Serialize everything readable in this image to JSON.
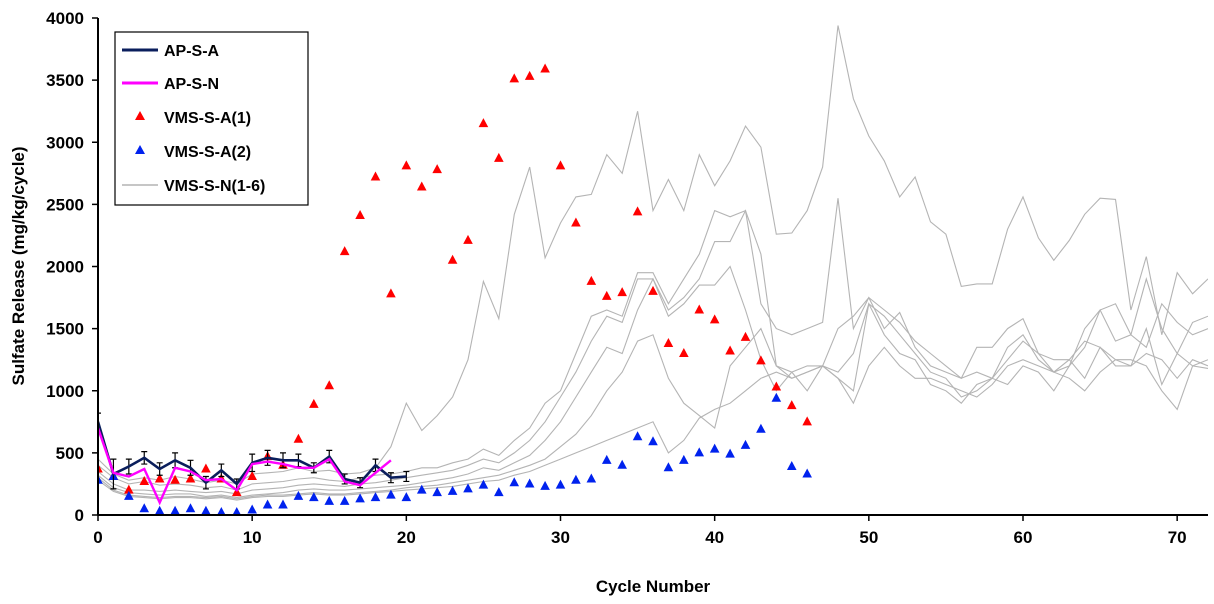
{
  "chart_data": {
    "type": "line",
    "xlabel": "Cycle Number",
    "ylabel": "Sulfate Release (mg/kg/cycle)",
    "xlim": [
      0,
      72
    ],
    "ylim": [
      0,
      4000
    ],
    "x_ticks": [
      0,
      10,
      20,
      30,
      40,
      50,
      60,
      70
    ],
    "y_ticks": [
      0,
      500,
      1000,
      1500,
      2000,
      2500,
      3000,
      3500,
      4000
    ],
    "grid": false,
    "legend_position": "top-left",
    "legend": [
      {
        "label": "AP-S-A",
        "series": "ap_s_a"
      },
      {
        "label": "AP-S-N",
        "series": "ap_s_n"
      },
      {
        "label": "VMS-S-A(1)",
        "series": "vms_s_a1"
      },
      {
        "label": "VMS-S-A(2)",
        "series": "vms_s_a2"
      },
      {
        "label": "VMS-S-N(1-6)",
        "series": "vms_s_n"
      }
    ],
    "colors": {
      "ap_s_a": "#0a1e5c",
      "ap_s_n": "#ff00ff",
      "vms_s_a1": "#ff0000",
      "vms_s_a2": "#0022ee",
      "vms_s_n": "#b4b4b4",
      "error_bar": "#000000"
    },
    "ap_s_a": {
      "x": [
        0,
        1,
        2,
        3,
        4,
        5,
        6,
        7,
        8,
        9,
        10,
        11,
        12,
        13,
        14,
        15,
        16,
        17,
        18,
        19,
        20
      ],
      "y": [
        750,
        330,
        390,
        460,
        370,
        440,
        380,
        260,
        360,
        250,
        420,
        460,
        440,
        440,
        380,
        470,
        290,
        260,
        400,
        300,
        310
      ],
      "error": [
        70,
        120,
        60,
        50,
        50,
        60,
        60,
        50,
        50,
        40,
        70,
        60,
        60,
        50,
        40,
        50,
        40,
        40,
        50,
        40,
        40
      ]
    },
    "ap_s_n": {
      "x": [
        0,
        1,
        2,
        3,
        4,
        5,
        6,
        7,
        8,
        9,
        10,
        11,
        12,
        13,
        14,
        15,
        16,
        17,
        18,
        19
      ],
      "y": [
        700,
        340,
        310,
        370,
        100,
        380,
        350,
        280,
        290,
        200,
        410,
        430,
        410,
        380,
        380,
        450,
        270,
        240,
        340,
        440
      ]
    },
    "vms_s_a1": {
      "x": [
        0,
        1,
        2,
        3,
        4,
        5,
        6,
        7,
        8,
        9,
        10,
        11,
        12,
        13,
        14,
        15,
        16,
        17,
        18,
        19,
        20,
        21,
        22,
        23,
        24,
        25,
        26,
        27,
        28,
        29,
        30,
        31,
        32,
        33,
        34,
        35,
        36,
        37,
        38,
        39,
        40,
        41,
        42,
        43,
        44,
        45,
        46
      ],
      "y": [
        370,
        310,
        200,
        270,
        290,
        280,
        290,
        370,
        290,
        180,
        310,
        470,
        400,
        610,
        890,
        1040,
        2120,
        2410,
        2720,
        1780,
        2810,
        2640,
        2780,
        2050,
        2210,
        3150,
        2870,
        3510,
        3530,
        3590,
        2810,
        2350,
        1880,
        1760,
        1790,
        2440,
        1800,
        1380,
        1300,
        1650,
        1570,
        1320,
        1430,
        1240,
        1030,
        880,
        750
      ]
    },
    "vms_s_a2": {
      "x": [
        0,
        1,
        2,
        3,
        4,
        5,
        6,
        7,
        8,
        9,
        10,
        11,
        12,
        13,
        14,
        15,
        16,
        17,
        18,
        19,
        20,
        21,
        22,
        23,
        24,
        25,
        26,
        27,
        28,
        29,
        30,
        31,
        32,
        33,
        34,
        35,
        36,
        37,
        38,
        39,
        40,
        41,
        42,
        43,
        44,
        45,
        46
      ],
      "y": [
        280,
        310,
        150,
        50,
        30,
        30,
        50,
        30,
        20,
        20,
        40,
        80,
        80,
        150,
        140,
        110,
        110,
        130,
        140,
        160,
        140,
        200,
        180,
        190,
        210,
        240,
        180,
        260,
        250,
        230,
        240,
        280,
        290,
        440,
        400,
        630,
        590,
        380,
        440,
        500,
        530,
        490,
        560,
        690,
        940,
        390,
        330
      ]
    },
    "vms_s_n": {
      "x": [
        0,
        1,
        2,
        3,
        4,
        5,
        6,
        7,
        8,
        9,
        10,
        11,
        12,
        13,
        14,
        15,
        16,
        17,
        18,
        19,
        20,
        21,
        22,
        23,
        24,
        25,
        26,
        27,
        28,
        29,
        30,
        31,
        32,
        33,
        34,
        35,
        36,
        37,
        38,
        39,
        40,
        41,
        42,
        43,
        44,
        45,
        46,
        47,
        48,
        49,
        50,
        51,
        52,
        53,
        54,
        55,
        56,
        57,
        58,
        59,
        60,
        61,
        62,
        63,
        64,
        65,
        66,
        67,
        68,
        69,
        70,
        71,
        72
      ],
      "lines": [
        [
          450,
          330,
          280,
          300,
          280,
          310,
          290,
          260,
          280,
          250,
          330,
          340,
          350,
          380,
          350,
          360,
          330,
          340,
          380,
          550,
          900,
          680,
          800,
          950,
          1250,
          1880,
          1580,
          2420,
          2800,
          2070,
          2350,
          2560,
          2580,
          2900,
          2750,
          3250,
          2450,
          2700,
          2450,
          2900,
          2650,
          2850,
          3130,
          2960,
          2260,
          2270,
          2450,
          2800,
          3940,
          3350,
          3050,
          2850,
          2560,
          2720,
          2360,
          2260,
          1840,
          1860,
          1860,
          2300,
          2560,
          2230,
          2050,
          2210,
          2420,
          2550,
          2540,
          1650,
          2080,
          1450,
          1950,
          1780,
          1900
        ],
        [
          400,
          300,
          250,
          270,
          240,
          250,
          240,
          220,
          230,
          200,
          250,
          260,
          270,
          290,
          300,
          280,
          270,
          300,
          320,
          330,
          350,
          380,
          380,
          420,
          450,
          530,
          480,
          600,
          700,
          900,
          1000,
          1300,
          1600,
          1650,
          1600,
          1950,
          1950,
          1700,
          1900,
          2100,
          2450,
          2400,
          2450,
          1700,
          1500,
          1450,
          1500,
          1550,
          2550,
          1500,
          1750,
          1500,
          1630,
          1350,
          1200,
          1150,
          1100,
          1350,
          1350,
          1500,
          1580,
          1300,
          1250,
          1250,
          1400,
          1350,
          1250,
          1200,
          1500,
          1050,
          1300,
          1200,
          1180
        ],
        [
          350,
          250,
          200,
          200,
          190,
          200,
          190,
          180,
          190,
          170,
          200,
          210,
          220,
          240,
          250,
          240,
          230,
          250,
          260,
          280,
          300,
          320,
          340,
          360,
          400,
          450,
          420,
          500,
          600,
          750,
          950,
          1150,
          1400,
          1600,
          1550,
          1900,
          1900,
          1650,
          1750,
          1900,
          2200,
          2200,
          2450,
          2100,
          1200,
          1100,
          1150,
          1200,
          1150,
          1300,
          1700,
          1600,
          1450,
          1300,
          1150,
          1100,
          950,
          1000,
          1100,
          1350,
          1450,
          1250,
          1150,
          1200,
          1500,
          1650,
          1400,
          1450,
          1900,
          1500,
          1300,
          1550,
          1600
        ],
        [
          320,
          220,
          180,
          170,
          160,
          170,
          170,
          150,
          160,
          140,
          160,
          170,
          180,
          200,
          210,
          200,
          200,
          210,
          220,
          230,
          240,
          260,
          280,
          300,
          330,
          380,
          360,
          420,
          480,
          600,
          750,
          950,
          1150,
          1350,
          1300,
          1650,
          1900,
          1600,
          1700,
          1850,
          1850,
          2000,
          1650,
          1250,
          1000,
          1150,
          1200,
          1200,
          1100,
          1000,
          1700,
          1450,
          1300,
          1250,
          1050,
          1000,
          900,
          1050,
          1100,
          1050,
          1200,
          1150,
          1000,
          1200,
          1350,
          1650,
          1700,
          1450,
          1350,
          1700,
          1550,
          1450,
          1500
        ],
        [
          300,
          200,
          160,
          150,
          140,
          150,
          150,
          140,
          150,
          130,
          150,
          160,
          160,
          170,
          180,
          170,
          170,
          180,
          190,
          200,
          220,
          230,
          240,
          260,
          280,
          300,
          320,
          360,
          400,
          450,
          550,
          650,
          800,
          1000,
          1150,
          1400,
          1450,
          1100,
          900,
          800,
          700,
          1200,
          1350,
          1500,
          1200,
          1150,
          1000,
          1200,
          1100,
          900,
          1200,
          1350,
          1200,
          1100,
          1100,
          1050,
          1000,
          950,
          1050,
          1200,
          1250,
          1200,
          1150,
          1250,
          1100,
          1350,
          1200,
          1200,
          1300,
          1250,
          1100,
          1250,
          1200
        ],
        [
          280,
          190,
          150,
          140,
          130,
          140,
          140,
          130,
          140,
          120,
          140,
          150,
          150,
          160,
          170,
          160,
          160,
          170,
          180,
          190,
          200,
          210,
          220,
          230,
          250,
          270,
          280,
          320,
          350,
          400,
          450,
          500,
          550,
          600,
          650,
          700,
          750,
          500,
          600,
          780,
          850,
          900,
          1000,
          1100,
          1150,
          1100,
          1150,
          1200,
          1500,
          1600,
          1750,
          1650,
          1550,
          1400,
          1300,
          1200,
          1100,
          1150,
          1100,
          1250,
          1400,
          1300,
          1150,
          1100,
          1000,
          1150,
          1250,
          1250,
          1200,
          1000,
          850,
          1200,
          1250
        ]
      ]
    }
  }
}
